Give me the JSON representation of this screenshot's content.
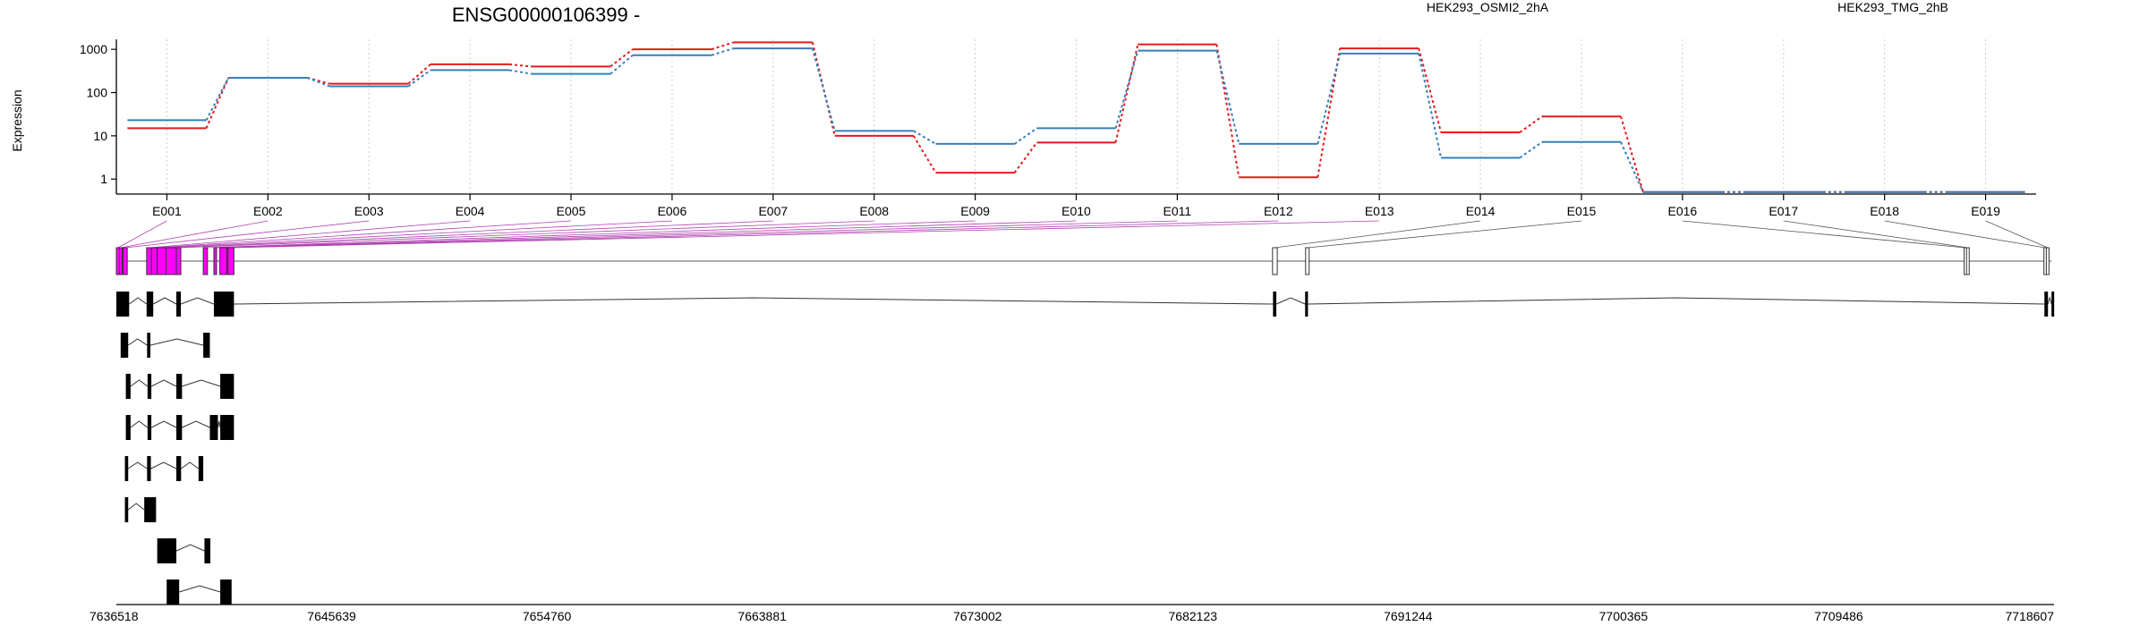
{
  "chart_data": {
    "type": "line",
    "title": "ENSG00000106399 -",
    "ylabel": "Expression",
    "y_scale": "log",
    "y_ticks": [
      "1",
      "10",
      "100",
      "1000"
    ],
    "grid": "vertical dotted at exon centers",
    "categories": [
      "E001",
      "E002",
      "E003",
      "E004",
      "E005",
      "E006",
      "E007",
      "E008",
      "E009",
      "E010",
      "E011",
      "E012",
      "E013",
      "E014",
      "E015",
      "E016",
      "E017",
      "E018",
      "E019"
    ],
    "series": [
      {
        "name": "HEK293_OSMI2_2hA",
        "color": "#e41a1c",
        "values": [
          15,
          220,
          160,
          450,
          400,
          1000,
          1450,
          10,
          1.4,
          7,
          1300,
          1.1,
          1050,
          12,
          28,
          0.5,
          0.5,
          0.5,
          0.5
        ]
      },
      {
        "name": "HEK293_TMG_2hB",
        "color": "#377eb8",
        "values": [
          23,
          220,
          140,
          330,
          270,
          730,
          1050,
          13,
          6.5,
          15,
          930,
          6.5,
          800,
          3.1,
          7.2,
          0.5,
          0.5,
          0.5,
          0.5
        ]
      }
    ],
    "genomic_axis": {
      "tick_labels": [
        "7636518",
        "7645639",
        "7654760",
        "7663881",
        "7673002",
        "7682123",
        "7691244",
        "7700365",
        "7709486",
        "7718607"
      ],
      "range": [
        7636518,
        7718607
      ]
    },
    "exons": [
      {
        "id": "E001",
        "start": 7636518,
        "end": 7636650,
        "color": "#ff00ff"
      },
      {
        "id": "E002",
        "start": 7636650,
        "end": 7636700,
        "color": "#ff00ff"
      },
      {
        "id": "E003",
        "start": 7636800,
        "end": 7636980,
        "color": "#ff00ff"
      },
      {
        "id": "E004",
        "start": 7637800,
        "end": 7638000,
        "color": "#ff00ff"
      },
      {
        "id": "E005",
        "start": 7638000,
        "end": 7638250,
        "color": "#ff00ff"
      },
      {
        "id": "E006",
        "start": 7638250,
        "end": 7638620,
        "color": "#ff00ff"
      },
      {
        "id": "E007",
        "start": 7638620,
        "end": 7639060,
        "color": "#ff00ff"
      },
      {
        "id": "E008",
        "start": 7639060,
        "end": 7639250,
        "color": "#ff00ff"
      },
      {
        "id": "E009",
        "start": 7640200,
        "end": 7640380,
        "color": "#ff00ff"
      },
      {
        "id": "E010",
        "start": 7640650,
        "end": 7640760,
        "color": "#ff00ff"
      },
      {
        "id": "E011",
        "start": 7640900,
        "end": 7641200,
        "color": "#ff00ff"
      },
      {
        "id": "E012",
        "start": 7641200,
        "end": 7641250,
        "color": "#ff00ff"
      },
      {
        "id": "E013",
        "start": 7641250,
        "end": 7641500,
        "color": "#ff00ff"
      },
      {
        "id": "E014",
        "start": 7685500,
        "end": 7685700,
        "color": "#ffffff"
      },
      {
        "id": "E015",
        "start": 7686900,
        "end": 7687050,
        "color": "#ffffff"
      },
      {
        "id": "E016",
        "start": 7714800,
        "end": 7714900,
        "color": "#ffffff"
      },
      {
        "id": "E017",
        "start": 7714900,
        "end": 7714950,
        "color": "#ffffff"
      },
      {
        "id": "E018",
        "start": 7718180,
        "end": 7718280,
        "color": "#ffffff"
      },
      {
        "id": "E019",
        "start": 7718280,
        "end": 7718380,
        "color": "#ffffff"
      }
    ],
    "transcripts": [
      [
        [
          7636518,
          7637060
        ],
        [
          7637800,
          7638080
        ],
        [
          7639060,
          7639250
        ],
        [
          7640650,
          7641500
        ],
        [
          7685520,
          7685660
        ],
        [
          7686880,
          7687000
        ],
        [
          7718200,
          7718350
        ],
        [
          7718500,
          7718600
        ]
      ],
      [
        [
          7636700,
          7637020
        ],
        [
          7637820,
          7637960
        ],
        [
          7640200,
          7640480
        ]
      ],
      [
        [
          7636920,
          7637120
        ],
        [
          7637840,
          7638000
        ],
        [
          7639060,
          7639300
        ],
        [
          7640920,
          7641500
        ]
      ],
      [
        [
          7636920,
          7637120
        ],
        [
          7637840,
          7638000
        ],
        [
          7639060,
          7639300
        ],
        [
          7640480,
          7640820
        ],
        [
          7640920,
          7641500
        ]
      ],
      [
        [
          7636880,
          7637020
        ],
        [
          7637820,
          7637980
        ],
        [
          7639060,
          7639260
        ],
        [
          7640000,
          7640200
        ]
      ],
      [
        [
          7636880,
          7637020
        ],
        [
          7637700,
          7638200
        ]
      ],
      [
        [
          7638250,
          7639060
        ],
        [
          7640250,
          7640500
        ]
      ],
      [
        [
          7638650,
          7639180
        ],
        [
          7640920,
          7641400
        ]
      ]
    ]
  }
}
